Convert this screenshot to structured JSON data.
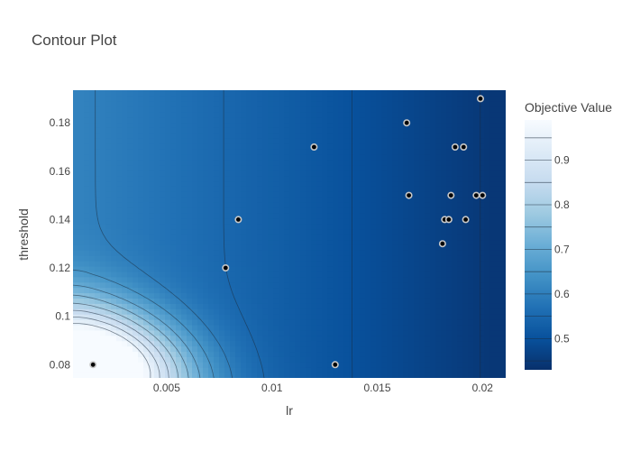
{
  "chart_data": {
    "type": "contour",
    "title": "Contour Plot",
    "xlabel": "lr",
    "ylabel": "threshold",
    "xlim": [
      0.00055,
      0.0211
    ],
    "ylim": [
      0.0745,
      0.1935
    ],
    "x_ticks": [
      0.005,
      0.01,
      0.015,
      0.02
    ],
    "x_tick_labels": [
      "0.005",
      "0.01",
      "0.015",
      "0.02"
    ],
    "y_ticks": [
      0.08,
      0.1,
      0.12,
      0.14,
      0.16,
      0.18
    ],
    "y_tick_labels": [
      "0.08",
      "0.1",
      "0.12",
      "0.14",
      "0.16",
      "0.18"
    ],
    "colorbar": {
      "title": "Objective Value",
      "range": [
        0.43,
        0.99
      ],
      "ticks": [
        0.5,
        0.6,
        0.7,
        0.8,
        0.9
      ],
      "tick_labels": [
        "0.5",
        "0.6",
        "0.7",
        "0.8",
        "0.9"
      ],
      "colorscale": [
        "#08306b",
        "#08519c",
        "#2171b5",
        "#4292c6",
        "#6baed6",
        "#9ecae1",
        "#c6dbef",
        "#deebf7",
        "#f7fbff"
      ]
    },
    "contour_levels": [
      0.45,
      0.5,
      0.55,
      0.6,
      0.65,
      0.7,
      0.75,
      0.8,
      0.85,
      0.9,
      0.95
    ],
    "trials": [
      {
        "lr": 0.0015,
        "threshold": 0.08
      },
      {
        "lr": 0.0078,
        "threshold": 0.12
      },
      {
        "lr": 0.0084,
        "threshold": 0.14
      },
      {
        "lr": 0.012,
        "threshold": 0.17
      },
      {
        "lr": 0.013,
        "threshold": 0.08
      },
      {
        "lr": 0.0164,
        "threshold": 0.18
      },
      {
        "lr": 0.0165,
        "threshold": 0.15
      },
      {
        "lr": 0.0181,
        "threshold": 0.13
      },
      {
        "lr": 0.0182,
        "threshold": 0.14
      },
      {
        "lr": 0.0184,
        "threshold": 0.14
      },
      {
        "lr": 0.0185,
        "threshold": 0.15
      },
      {
        "lr": 0.0187,
        "threshold": 0.17
      },
      {
        "lr": 0.0191,
        "threshold": 0.17
      },
      {
        "lr": 0.0192,
        "threshold": 0.14
      },
      {
        "lr": 0.0197,
        "threshold": 0.15
      },
      {
        "lr": 0.0199,
        "threshold": 0.19
      },
      {
        "lr": 0.02,
        "threshold": 0.15
      }
    ]
  }
}
